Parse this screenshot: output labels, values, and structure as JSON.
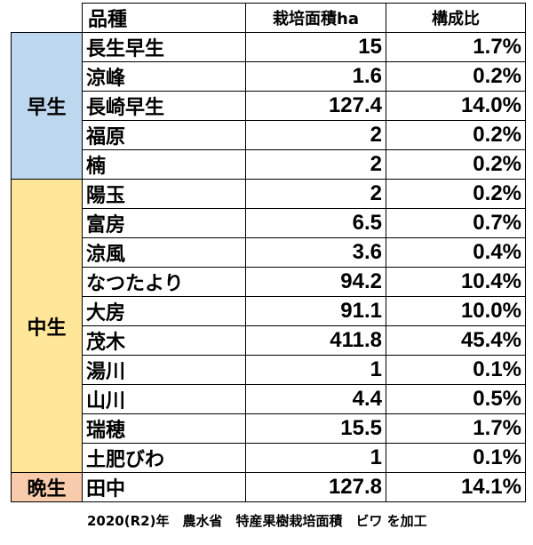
{
  "table": {
    "headers": {
      "group": "",
      "variety": "品種",
      "area": "栽培面積ha",
      "ratio": "構成比"
    },
    "groups": [
      {
        "label": "早生",
        "color": "#bdd7ee",
        "rows": [
          {
            "variety": "長生早生",
            "area": "15",
            "ratio": "1.7%"
          },
          {
            "variety": "涼峰",
            "area": "1.6",
            "ratio": "0.2%"
          },
          {
            "variety": "長崎早生",
            "area": "127.4",
            "ratio": "14.0%"
          },
          {
            "variety": "福原",
            "area": "2",
            "ratio": "0.2%"
          },
          {
            "variety": "楠",
            "area": "2",
            "ratio": "0.2%"
          }
        ]
      },
      {
        "label": "中生",
        "color": "#ffe699",
        "rows": [
          {
            "variety": "陽玉",
            "area": "2",
            "ratio": "0.2%"
          },
          {
            "variety": "富房",
            "area": "6.5",
            "ratio": "0.7%"
          },
          {
            "variety": "涼風",
            "area": "3.6",
            "ratio": "0.4%"
          },
          {
            "variety": "なつたより",
            "area": "94.2",
            "ratio": "10.4%"
          },
          {
            "variety": "大房",
            "area": "91.1",
            "ratio": "10.0%"
          },
          {
            "variety": "茂木",
            "area": "411.8",
            "ratio": "45.4%"
          },
          {
            "variety": "湯川",
            "area": "1",
            "ratio": "0.1%"
          },
          {
            "variety": "山川",
            "area": "4.4",
            "ratio": "0.5%"
          },
          {
            "variety": "瑞穂",
            "area": "15.5",
            "ratio": "1.7%"
          },
          {
            "variety": "土肥びわ",
            "area": "1",
            "ratio": "0.1%"
          }
        ]
      },
      {
        "label": "晩生",
        "color": "#f8cbad",
        "rows": [
          {
            "variety": "田中",
            "area": "127.8",
            "ratio": "14.1%"
          }
        ]
      }
    ]
  },
  "source_note": "2020(R2)年　農水省　特産果樹栽培面積　ビワ を加工"
}
